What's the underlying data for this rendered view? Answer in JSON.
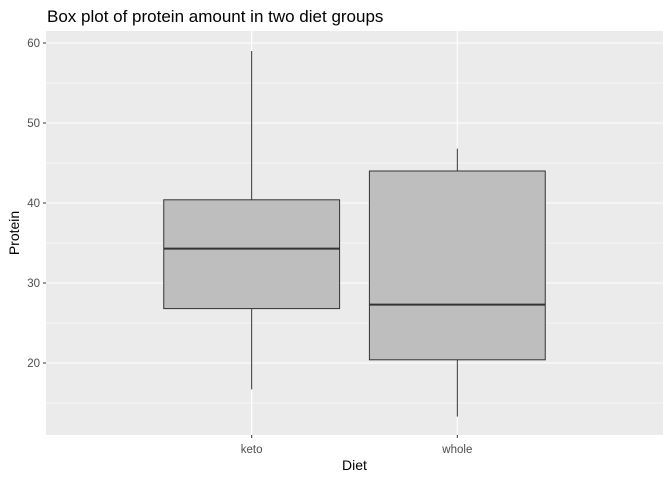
{
  "chart_data": {
    "type": "box",
    "title": "Box plot of protein amount in two diet groups",
    "xlabel": "Diet",
    "ylabel": "Protein",
    "categories": [
      "keto",
      "whole"
    ],
    "boxes": [
      {
        "category": "keto",
        "whisker_low": 16.7,
        "q1": 26.8,
        "median": 34.3,
        "q3": 40.4,
        "whisker_high": 59.0
      },
      {
        "category": "whole",
        "whisker_low": 13.3,
        "q1": 20.4,
        "median": 27.3,
        "q3": 44.0,
        "whisker_high": 46.8
      }
    ],
    "yticks": [
      20,
      30,
      40,
      50,
      60
    ],
    "ylim": [
      11.0,
      61.5
    ],
    "grid": true,
    "colors": {
      "panel_bg": "#ebebeb",
      "grid_major": "#ffffff",
      "box_fill": "#bebebe",
      "box_stroke": "#333333",
      "tick_text": "#4d4d4d"
    }
  }
}
